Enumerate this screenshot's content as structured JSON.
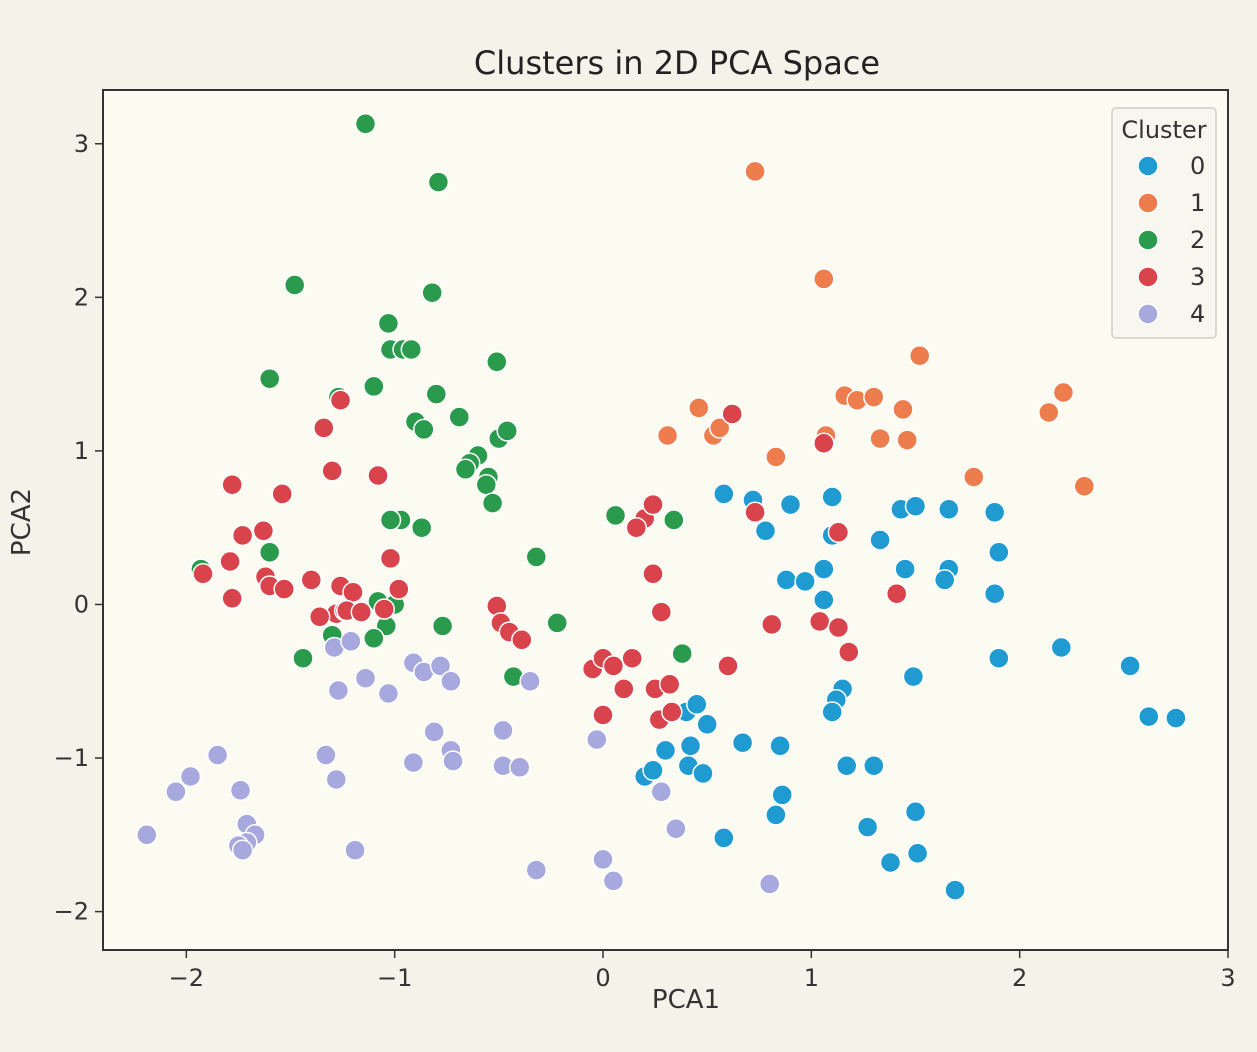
{
  "chart_data": {
    "type": "scatter",
    "title": "Clusters in 2D PCA Space",
    "xlabel": "PCA1",
    "ylabel": "PCA2",
    "xlim": [
      -2.4,
      3.0
    ],
    "ylim": [
      -2.25,
      3.35
    ],
    "xticks": [
      -2,
      -1,
      0,
      1,
      2,
      3
    ],
    "yticks": [
      -2,
      -1,
      0,
      1,
      2,
      3
    ],
    "grid": false,
    "legend": {
      "title": "Cluster",
      "placement": "top-right"
    },
    "series": [
      {
        "name": "0",
        "color": "#1f9bd1",
        "points": [
          [
            0.58,
            0.72
          ],
          [
            0.72,
            0.68
          ],
          [
            0.78,
            0.48
          ],
          [
            0.9,
            0.65
          ],
          [
            1.1,
            0.7
          ],
          [
            1.1,
            0.45
          ],
          [
            1.33,
            0.42
          ],
          [
            1.43,
            0.62
          ],
          [
            1.5,
            0.64
          ],
          [
            1.66,
            0.62
          ],
          [
            1.88,
            0.6
          ],
          [
            1.9,
            0.34
          ],
          [
            1.45,
            0.23
          ],
          [
            1.66,
            0.23
          ],
          [
            1.64,
            0.16
          ],
          [
            1.88,
            0.07
          ],
          [
            0.88,
            0.16
          ],
          [
            0.97,
            0.15
          ],
          [
            1.06,
            0.23
          ],
          [
            1.06,
            0.03
          ],
          [
            1.9,
            -0.35
          ],
          [
            2.2,
            -0.28
          ],
          [
            2.53,
            -0.4
          ],
          [
            1.49,
            -0.47
          ],
          [
            1.15,
            -0.55
          ],
          [
            1.12,
            -0.62
          ],
          [
            1.1,
            -0.7
          ],
          [
            0.4,
            -0.7
          ],
          [
            0.45,
            -0.65
          ],
          [
            0.5,
            -0.78
          ],
          [
            0.3,
            -0.95
          ],
          [
            0.42,
            -0.92
          ],
          [
            0.67,
            -0.9
          ],
          [
            0.85,
            -0.92
          ],
          [
            0.2,
            -1.12
          ],
          [
            0.24,
            -1.08
          ],
          [
            0.41,
            -1.05
          ],
          [
            0.48,
            -1.1
          ],
          [
            1.17,
            -1.05
          ],
          [
            1.3,
            -1.05
          ],
          [
            0.86,
            -1.24
          ],
          [
            0.83,
            -1.37
          ],
          [
            1.27,
            -1.45
          ],
          [
            1.5,
            -1.35
          ],
          [
            0.58,
            -1.52
          ],
          [
            1.38,
            -1.68
          ],
          [
            1.51,
            -1.62
          ],
          [
            1.69,
            -1.86
          ],
          [
            2.62,
            -0.73
          ],
          [
            2.75,
            -0.74
          ]
        ]
      },
      {
        "name": "1",
        "color": "#ee7d4d",
        "points": [
          [
            0.73,
            2.82
          ],
          [
            1.06,
            2.12
          ],
          [
            1.52,
            1.62
          ],
          [
            2.21,
            1.38
          ],
          [
            2.14,
            1.25
          ],
          [
            2.31,
            0.77
          ],
          [
            1.78,
            0.83
          ],
          [
            1.16,
            1.36
          ],
          [
            1.22,
            1.33
          ],
          [
            1.3,
            1.35
          ],
          [
            1.44,
            1.27
          ],
          [
            0.46,
            1.28
          ],
          [
            0.53,
            1.1
          ],
          [
            0.56,
            1.15
          ],
          [
            0.31,
            1.1
          ],
          [
            1.07,
            1.1
          ],
          [
            1.33,
            1.08
          ],
          [
            1.46,
            1.07
          ],
          [
            0.83,
            0.96
          ]
        ]
      },
      {
        "name": "2",
        "color": "#2a9a4c",
        "points": [
          [
            -1.14,
            3.13
          ],
          [
            -0.79,
            2.75
          ],
          [
            -1.48,
            2.08
          ],
          [
            -0.82,
            2.03
          ],
          [
            -1.03,
            1.83
          ],
          [
            -1.02,
            1.66
          ],
          [
            -0.96,
            1.66
          ],
          [
            -0.92,
            1.66
          ],
          [
            -0.51,
            1.58
          ],
          [
            -1.6,
            1.47
          ],
          [
            -1.1,
            1.42
          ],
          [
            -1.27,
            1.35
          ],
          [
            -0.8,
            1.37
          ],
          [
            -0.69,
            1.22
          ],
          [
            -0.9,
            1.19
          ],
          [
            -0.86,
            1.14
          ],
          [
            -0.6,
            0.97
          ],
          [
            -0.64,
            0.92
          ],
          [
            -0.66,
            0.88
          ],
          [
            -0.55,
            0.83
          ],
          [
            -0.56,
            0.78
          ],
          [
            -0.5,
            1.08
          ],
          [
            -0.46,
            1.13
          ],
          [
            -0.53,
            0.66
          ],
          [
            -0.97,
            0.55
          ],
          [
            -1.02,
            0.55
          ],
          [
            -0.87,
            0.5
          ],
          [
            0.06,
            0.58
          ],
          [
            0.34,
            0.55
          ],
          [
            -1.93,
            0.23
          ],
          [
            -1.6,
            0.34
          ],
          [
            -1.08,
            0.02
          ],
          [
            -1.0,
            0.0
          ],
          [
            -0.77,
            -0.14
          ],
          [
            -1.04,
            -0.14
          ],
          [
            -1.3,
            -0.2
          ],
          [
            -1.1,
            -0.22
          ],
          [
            -1.44,
            -0.35
          ],
          [
            -0.22,
            -0.12
          ],
          [
            -0.32,
            0.31
          ],
          [
            -0.43,
            -0.47
          ],
          [
            0.38,
            -0.32
          ]
        ]
      },
      {
        "name": "3",
        "color": "#d9434b",
        "points": [
          [
            -1.26,
            1.33
          ],
          [
            -1.34,
            1.15
          ],
          [
            -1.3,
            0.87
          ],
          [
            -1.08,
            0.84
          ],
          [
            -1.78,
            0.78
          ],
          [
            -1.54,
            0.72
          ],
          [
            -1.63,
            0.48
          ],
          [
            -1.73,
            0.45
          ],
          [
            -1.79,
            0.28
          ],
          [
            -1.92,
            0.2
          ],
          [
            -1.62,
            0.18
          ],
          [
            -1.6,
            0.12
          ],
          [
            -1.53,
            0.1
          ],
          [
            -1.4,
            0.16
          ],
          [
            -1.26,
            0.12
          ],
          [
            -1.2,
            0.08
          ],
          [
            -1.02,
            0.3
          ],
          [
            -0.98,
            0.1
          ],
          [
            -1.28,
            -0.06
          ],
          [
            -1.24,
            -0.04
          ],
          [
            -1.23,
            -0.04
          ],
          [
            -1.16,
            -0.05
          ],
          [
            -1.05,
            -0.03
          ],
          [
            -1.78,
            0.04
          ],
          [
            -1.36,
            -0.08
          ],
          [
            -0.51,
            -0.01
          ],
          [
            -0.49,
            -0.12
          ],
          [
            -0.45,
            -0.18
          ],
          [
            -0.39,
            -0.23
          ],
          [
            0.2,
            0.56
          ],
          [
            0.24,
            0.65
          ],
          [
            0.16,
            0.5
          ],
          [
            0.24,
            0.2
          ],
          [
            0.28,
            -0.05
          ],
          [
            0.62,
            1.24
          ],
          [
            0.73,
            0.6
          ],
          [
            1.06,
            1.05
          ],
          [
            1.13,
            0.47
          ],
          [
            0.81,
            -0.13
          ],
          [
            1.04,
            -0.11
          ],
          [
            1.13,
            -0.15
          ],
          [
            1.18,
            -0.31
          ],
          [
            -0.05,
            -0.42
          ],
          [
            0.0,
            -0.35
          ],
          [
            0.05,
            -0.4
          ],
          [
            0.14,
            -0.35
          ],
          [
            0.1,
            -0.55
          ],
          [
            0.0,
            -0.72
          ],
          [
            0.25,
            -0.55
          ],
          [
            0.32,
            -0.52
          ],
          [
            0.27,
            -0.75
          ],
          [
            0.33,
            -0.7
          ],
          [
            0.6,
            -0.4
          ],
          [
            1.41,
            0.07
          ]
        ]
      },
      {
        "name": "4",
        "color": "#a7a8dd",
        "points": [
          [
            -1.29,
            -0.28
          ],
          [
            -1.21,
            -0.24
          ],
          [
            -1.27,
            -0.56
          ],
          [
            -1.14,
            -0.48
          ],
          [
            -1.03,
            -0.58
          ],
          [
            -0.91,
            -0.38
          ],
          [
            -0.86,
            -0.44
          ],
          [
            -0.78,
            -0.4
          ],
          [
            -0.73,
            -0.5
          ],
          [
            -0.35,
            -0.5
          ],
          [
            -0.48,
            -0.82
          ],
          [
            -0.81,
            -0.83
          ],
          [
            -0.91,
            -1.03
          ],
          [
            -0.73,
            -0.95
          ],
          [
            -0.72,
            -1.02
          ],
          [
            -0.48,
            -1.05
          ],
          [
            -0.4,
            -1.06
          ],
          [
            -1.33,
            -0.98
          ],
          [
            -1.28,
            -1.14
          ],
          [
            -1.19,
            -1.6
          ],
          [
            -1.85,
            -0.98
          ],
          [
            -1.98,
            -1.12
          ],
          [
            -2.05,
            -1.22
          ],
          [
            -1.74,
            -1.21
          ],
          [
            -1.71,
            -1.43
          ],
          [
            -1.67,
            -1.5
          ],
          [
            -1.71,
            -1.55
          ],
          [
            -1.75,
            -1.57
          ],
          [
            -1.73,
            -1.6
          ],
          [
            -2.19,
            -1.5
          ],
          [
            -0.03,
            -0.88
          ],
          [
            0.28,
            -1.22
          ],
          [
            0.35,
            -1.46
          ],
          [
            0.0,
            -1.66
          ],
          [
            0.05,
            -1.8
          ],
          [
            -0.32,
            -1.73
          ],
          [
            0.8,
            -1.82
          ]
        ]
      }
    ]
  }
}
